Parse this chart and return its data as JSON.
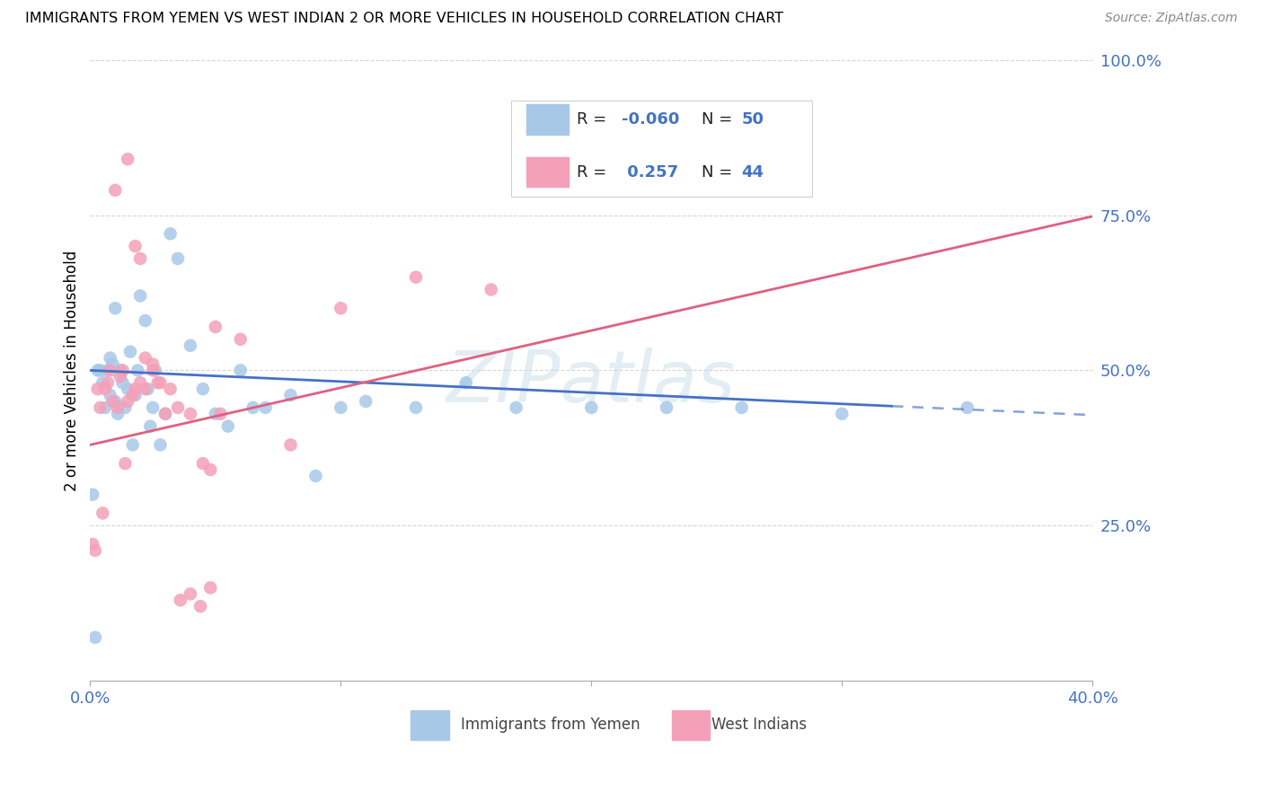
{
  "title": "IMMIGRANTS FROM YEMEN VS WEST INDIAN 2 OR MORE VEHICLES IN HOUSEHOLD CORRELATION CHART",
  "source": "Source: ZipAtlas.com",
  "ylabel": "2 or more Vehicles in Household",
  "color_yemen": "#a8c8e8",
  "color_west_indian": "#f4a0b8",
  "color_yemen_line": "#4472c4",
  "color_west_indian_line": "#e06080",
  "color_axis_labels": "#4472c4",
  "watermark": "ZIPatlas",
  "scatter_yemen_x": [
    0.001,
    0.002,
    0.003,
    0.004,
    0.005,
    0.006,
    0.007,
    0.008,
    0.008,
    0.009,
    0.01,
    0.01,
    0.011,
    0.012,
    0.013,
    0.014,
    0.015,
    0.016,
    0.017,
    0.018,
    0.019,
    0.02,
    0.022,
    0.023,
    0.024,
    0.025,
    0.026,
    0.028,
    0.03,
    0.032,
    0.035,
    0.04,
    0.045,
    0.05,
    0.055,
    0.06,
    0.065,
    0.07,
    0.08,
    0.09,
    0.1,
    0.11,
    0.13,
    0.15,
    0.17,
    0.2,
    0.23,
    0.26,
    0.3,
    0.35
  ],
  "scatter_yemen_y": [
    0.3,
    0.07,
    0.5,
    0.5,
    0.48,
    0.44,
    0.5,
    0.52,
    0.46,
    0.51,
    0.45,
    0.6,
    0.43,
    0.5,
    0.48,
    0.44,
    0.47,
    0.53,
    0.38,
    0.46,
    0.5,
    0.62,
    0.58,
    0.47,
    0.41,
    0.44,
    0.5,
    0.38,
    0.43,
    0.72,
    0.68,
    0.54,
    0.47,
    0.43,
    0.41,
    0.5,
    0.44,
    0.44,
    0.46,
    0.33,
    0.44,
    0.45,
    0.44,
    0.48,
    0.44,
    0.44,
    0.44,
    0.44,
    0.43,
    0.44
  ],
  "scatter_wi_x": [
    0.001,
    0.002,
    0.003,
    0.004,
    0.005,
    0.006,
    0.007,
    0.008,
    0.009,
    0.01,
    0.011,
    0.012,
    0.013,
    0.014,
    0.015,
    0.017,
    0.018,
    0.02,
    0.022,
    0.025,
    0.027,
    0.03,
    0.035,
    0.04,
    0.05,
    0.06,
    0.08,
    0.1,
    0.13,
    0.16,
    0.045,
    0.048,
    0.052,
    0.015,
    0.018,
    0.02,
    0.022,
    0.025,
    0.028,
    0.032,
    0.036,
    0.04,
    0.044,
    0.048
  ],
  "scatter_wi_y": [
    0.22,
    0.21,
    0.47,
    0.44,
    0.27,
    0.47,
    0.48,
    0.5,
    0.45,
    0.79,
    0.44,
    0.49,
    0.5,
    0.35,
    0.45,
    0.46,
    0.47,
    0.48,
    0.47,
    0.5,
    0.48,
    0.43,
    0.44,
    0.43,
    0.57,
    0.55,
    0.38,
    0.6,
    0.65,
    0.63,
    0.35,
    0.34,
    0.43,
    0.84,
    0.7,
    0.68,
    0.52,
    0.51,
    0.48,
    0.47,
    0.13,
    0.14,
    0.12,
    0.15
  ],
  "xlim": [
    0.0,
    0.4
  ],
  "ylim": [
    0.0,
    1.0
  ],
  "ytick_positions": [
    0.0,
    0.25,
    0.5,
    0.75,
    1.0
  ],
  "ytick_labels": [
    "",
    "25.0%",
    "50.0%",
    "75.0%",
    "100.0%"
  ]
}
